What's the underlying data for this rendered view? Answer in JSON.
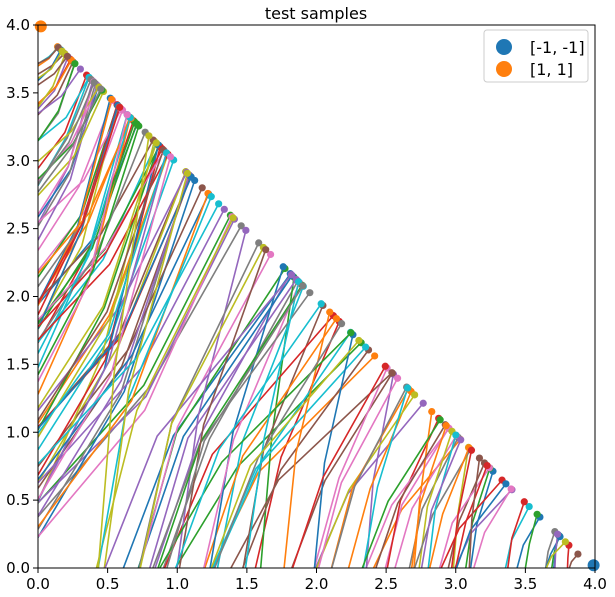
{
  "chart_data": {
    "type": "line",
    "title": "test samples",
    "xlabel": "",
    "ylabel": "",
    "xlim": [
      0.0,
      4.0
    ],
    "ylim": [
      0.0,
      4.0
    ],
    "xticks": [
      "0.0",
      "0.5",
      "1.0",
      "1.5",
      "2.0",
      "2.5",
      "3.0",
      "3.5",
      "4.0"
    ],
    "yticks": [
      "0.0",
      "0.5",
      "1.0",
      "1.5",
      "2.0",
      "2.5",
      "3.0",
      "3.5",
      "4.0"
    ],
    "grid": false,
    "legend": {
      "placement": "top-right",
      "entries": [
        {
          "label": "[-1, -1]",
          "color": "#1f77b4"
        },
        {
          "label": "[1, 1]",
          "color": "#ff7f0e"
        }
      ]
    },
    "palette": [
      "#1f77b4",
      "#ff7f0e",
      "#2ca02c",
      "#d62728",
      "#9467bd",
      "#8c564b",
      "#e377c2",
      "#7f7f7f",
      "#bcbd22",
      "#17becf"
    ],
    "endpoint_markers": [
      {
        "x": 0.02,
        "y": 3.99,
        "color": "#ff7f0e"
      },
      {
        "x": 3.99,
        "y": 0.02,
        "color": "#1f77b4"
      }
    ],
    "trajectory_families": [
      {
        "name": "",
        "start_y_range": [
          0.2,
          3.75
        ],
        "end_gap": 0.0,
        "count": 90
      },
      {
        "name": "",
        "start_x_range": [
          0.42,
          3.82
        ],
        "end_gap": 0.0,
        "count": 90
      }
    ]
  }
}
